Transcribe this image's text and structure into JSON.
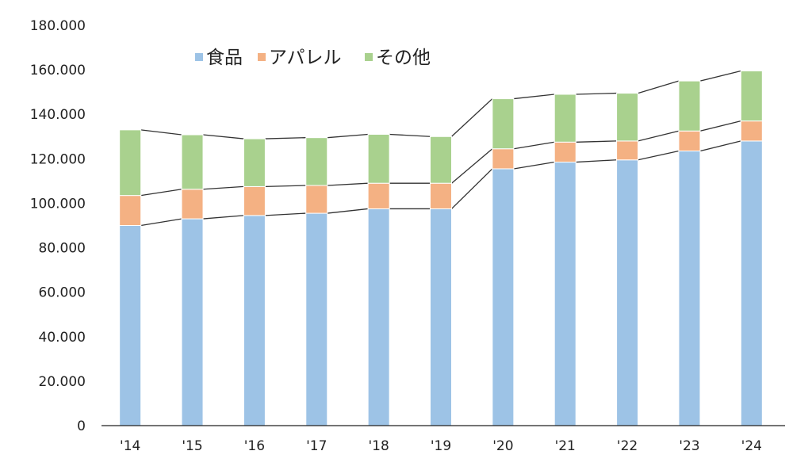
{
  "chart_data": {
    "type": "bar",
    "stacked": true,
    "categories": [
      "'14",
      "'15",
      "'16",
      "'17",
      "'18",
      "'19",
      "'20",
      "'21",
      "'22",
      "'23",
      "'24"
    ],
    "series": [
      {
        "name": "食品",
        "color": "#9dc3e6",
        "values": [
          90000,
          93000,
          94500,
          95500,
          97500,
          97500,
          115500,
          118500,
          119500,
          123500,
          128000
        ]
      },
      {
        "name": "アパレル",
        "color": "#f4b183",
        "values": [
          13500,
          13300,
          13000,
          12500,
          11500,
          11500,
          9000,
          9000,
          8500,
          9000,
          9000
        ]
      },
      {
        "name": "その他",
        "color": "#a9d18e",
        "values": [
          29500,
          24500,
          21500,
          21500,
          22000,
          21000,
          22500,
          21500,
          21500,
          22500,
          22500
        ]
      }
    ],
    "series_lines": true,
    "y_ticks": [
      "0",
      "20.000",
      "40.000",
      "60.000",
      "80.000",
      "100.000",
      "120.000",
      "140.000",
      "160.000",
      "180.000"
    ],
    "ylim": [
      0,
      180000
    ],
    "legend_position": "top-left",
    "grid": false
  }
}
